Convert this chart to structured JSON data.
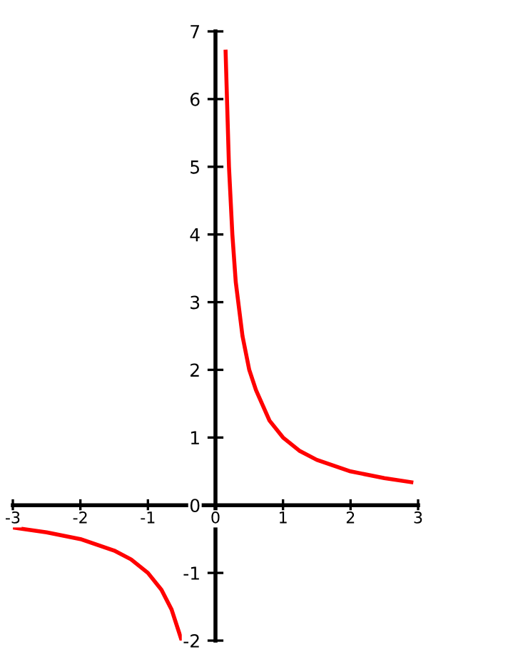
{
  "chart_data": {
    "type": "line",
    "series": [
      {
        "color": "#ff0000",
        "x": [
          0.15,
          0.2,
          0.25,
          0.3,
          0.4,
          0.5,
          0.6,
          0.8,
          1,
          1.25,
          1.5,
          2,
          2.5,
          2.9
        ],
        "values": [
          6.7,
          5,
          4,
          3.3,
          2.5,
          2,
          1.7,
          1.25,
          1,
          0.8,
          0.67,
          0.5,
          0.4,
          0.34
        ]
      },
      {
        "color": "#ff0000",
        "x": [
          -3,
          -2.5,
          -2,
          -1.5,
          -1.25,
          -1,
          -0.8,
          -0.65,
          -0.5
        ],
        "values": [
          -0.33,
          -0.4,
          -0.5,
          -0.67,
          -0.8,
          -1,
          -1.25,
          -1.54,
          -2
        ]
      }
    ],
    "xlim": [
      -3,
      3
    ],
    "ylim": [
      -2,
      7
    ],
    "xticks": [
      -3,
      -2,
      -1,
      0,
      1,
      2,
      3
    ],
    "yticks": [
      -2,
      -1,
      0,
      1,
      2,
      3,
      4,
      5,
      6,
      7
    ],
    "grid": false,
    "legend": false,
    "marker": "none",
    "line_style": "solid"
  }
}
